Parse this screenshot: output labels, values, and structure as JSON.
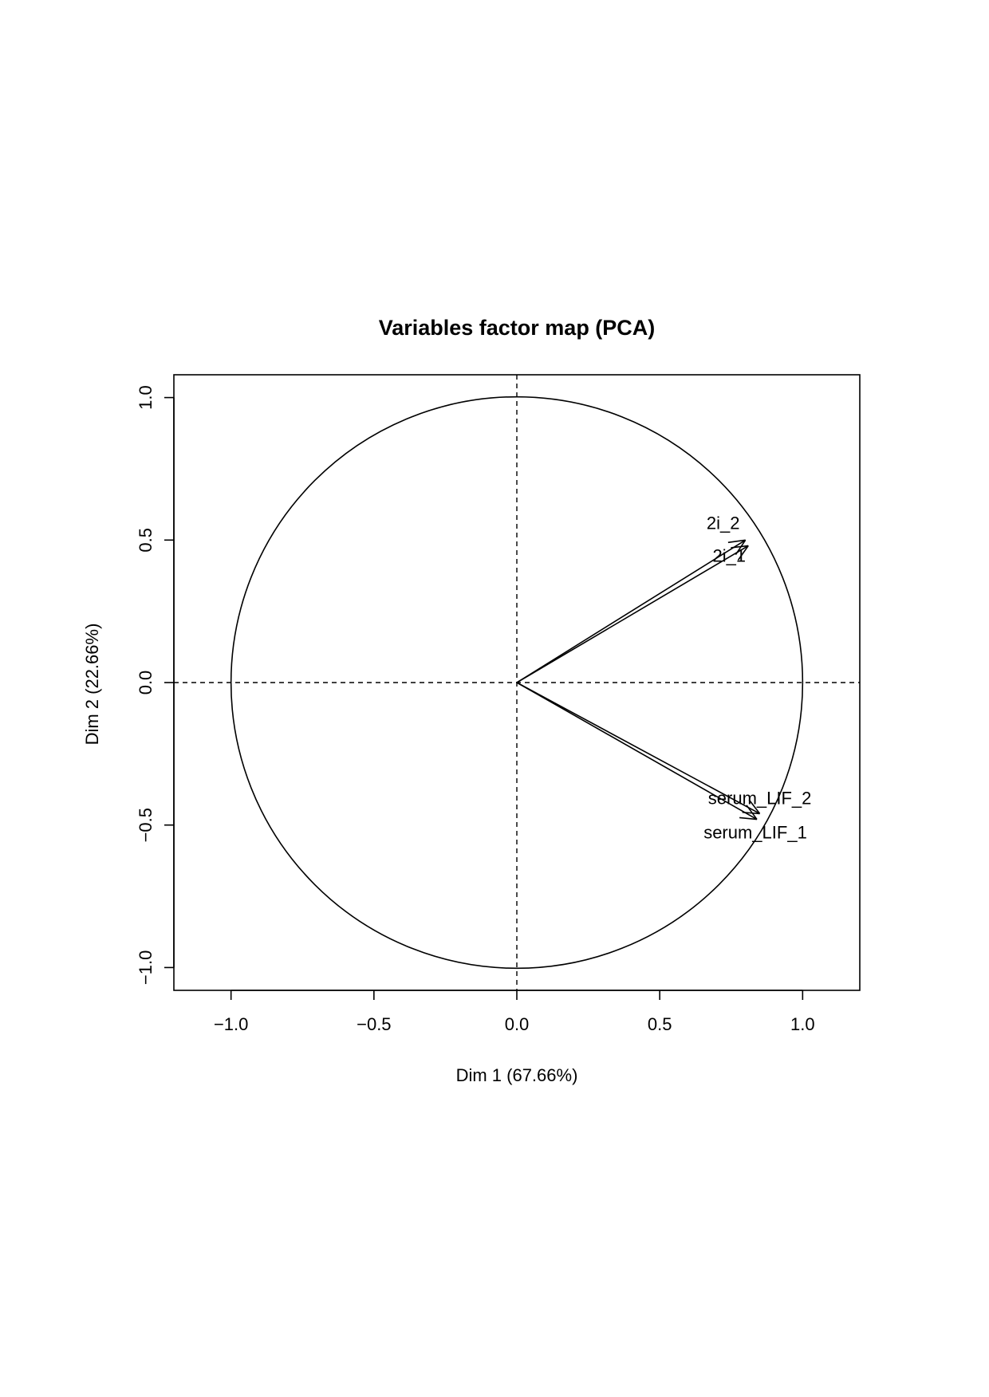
{
  "chart_data": {
    "type": "scatter",
    "title": "Variables factor map (PCA)",
    "xlabel": "Dim 1 (67.66%)",
    "ylabel": "Dim 2 (22.66%)",
    "xlim": [
      -1.2,
      1.2
    ],
    "ylim": [
      -1.08,
      1.08
    ],
    "xticks": [
      -1.0,
      -0.5,
      0.0,
      0.5,
      1.0
    ],
    "xtick_labels": [
      "−1.0",
      "−0.5",
      "0.0",
      "0.5",
      "1.0"
    ],
    "yticks": [
      -1.0,
      -0.5,
      0.0,
      0.5,
      1.0
    ],
    "ytick_labels": [
      "−1.0",
      "−0.5",
      "0.0",
      "0.5",
      "1.0"
    ],
    "unit_circle": true,
    "reference_lines": {
      "x": 0,
      "y": 0,
      "style": "dashed"
    },
    "series": [
      {
        "name": "2i_2",
        "x": 0.8,
        "y": 0.5
      },
      {
        "name": "2i_1",
        "x": 0.81,
        "y": 0.48
      },
      {
        "name": "serum_LIF_2",
        "x": 0.85,
        "y": -0.46
      },
      {
        "name": "serum_LIF_1",
        "x": 0.84,
        "y": -0.48
      }
    ]
  }
}
